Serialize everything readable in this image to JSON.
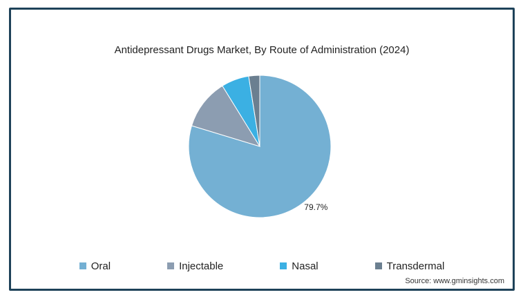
{
  "chart_data": {
    "type": "pie",
    "title": "Antidepressant Drugs Market, By Route of Administration (2024)",
    "categories": [
      "Oral",
      "Injectable",
      "Nasal",
      "Transdermal"
    ],
    "values": [
      79.7,
      11.5,
      6.3,
      2.5
    ],
    "data_labels": [
      "79.7%",
      "",
      "",
      ""
    ],
    "colors": [
      "#74b0d3",
      "#8c9db1",
      "#3bb0e3",
      "#6b7f90"
    ],
    "legend_position": "bottom"
  },
  "source": "Source: www.gminsights.com"
}
